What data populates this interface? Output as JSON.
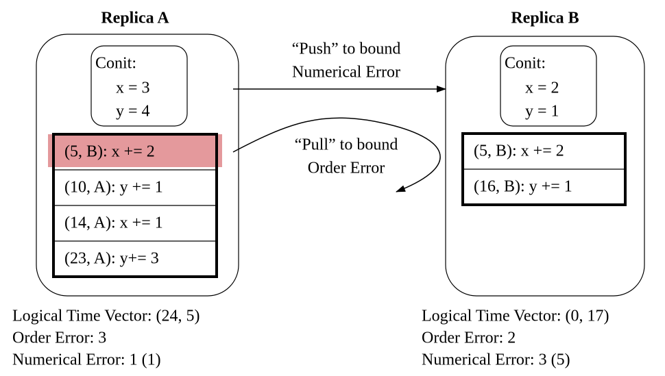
{
  "replicas": [
    {
      "title": "Replica A",
      "conit": {
        "label": "Conit:",
        "lines": [
          "x = 3",
          "y = 4"
        ]
      },
      "log": [
        "(5, B): x += 2",
        "(10, A): y += 1",
        "(14, A): x += 1",
        "(23, A): y+= 3"
      ],
      "info": [
        "Logical Time Vector: (24, 5)",
        "Order Error: 3",
        "Numerical Error: 1 (1)"
      ]
    },
    {
      "title": "Replica B",
      "conit": {
        "label": "Conit:",
        "lines": [
          "x = 2",
          "y = 1"
        ]
      },
      "log": [
        "(5, B): x += 2",
        "(16, B): y += 1"
      ],
      "info": [
        "Logical Time Vector: (0, 17)",
        "Order Error: 2",
        "Numerical Error: 3 (5)"
      ]
    }
  ],
  "push": {
    "lines": [
      "“Push” to bound",
      "Numerical Error"
    ]
  },
  "pull": {
    "lines": [
      "“Pull” to bound",
      "Order Error"
    ]
  }
}
